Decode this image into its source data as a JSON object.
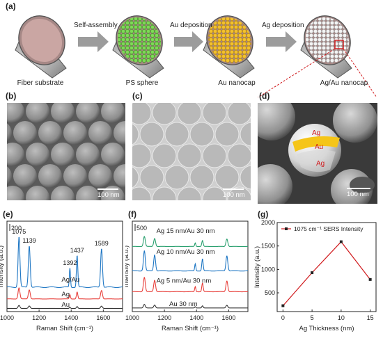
{
  "panels": {
    "a": "(a)",
    "b": "(b)",
    "c": "(c)",
    "d": "(d)",
    "e": "(e)",
    "f": "(f)",
    "g": "(g)"
  },
  "schematic": {
    "steps": [
      "Fiber substrate",
      "PS sphere",
      "Au nanocap",
      "Ag/Au nanocap"
    ],
    "arrows": [
      "Self-assembly",
      "Au deposition",
      "Ag deposition"
    ],
    "colors": {
      "fiber": "#caa6a3",
      "ps_sphere": "#7ed957",
      "au_nanocap": "#f2c12e",
      "ag_au_nanocap": "#eeeeee",
      "arrow": "#9c9c9c",
      "callout": "#d0181b"
    }
  },
  "sem": {
    "b_scale": "100 nm",
    "c_scale": "100 nm",
    "d_scale": "100 nm",
    "d_labels": {
      "ag_top": "Ag",
      "au": "Au",
      "ag_bottom": "Ag"
    }
  },
  "chart_data": [
    {
      "panel": "e",
      "type": "line",
      "xlabel": "Raman Shift (cm⁻¹)",
      "ylabel": "Intensity (a.u.)",
      "xlim": [
        1000,
        1720
      ],
      "xticks": [
        1000,
        1200,
        1400,
        1600
      ],
      "scale_label": "200",
      "series": [
        {
          "name": "Au",
          "color": "#333333",
          "offset": 0.035,
          "scale": 0.06
        },
        {
          "name": "Ag",
          "color": "#e8413c",
          "offset": 0.14,
          "scale": 0.22
        },
        {
          "name": "Ag/Au",
          "color": "#1f77c4",
          "offset": 0.27,
          "scale": 1.0
        }
      ],
      "peaks": [
        {
          "pos": 1075,
          "rel": 1.0,
          "width": 16,
          "label": "1075"
        },
        {
          "pos": 1139,
          "rel": 0.82,
          "width": 16,
          "label": "1139"
        },
        {
          "pos": 1392,
          "rel": 0.38,
          "width": 10,
          "label": "1392"
        },
        {
          "pos": 1437,
          "rel": 0.63,
          "width": 12,
          "label": "1437"
        },
        {
          "pos": 1589,
          "rel": 0.77,
          "width": 16,
          "label": "1589"
        }
      ]
    },
    {
      "panel": "f",
      "type": "line",
      "xlabel": "Raman Shift (cm⁻¹)",
      "ylabel": "Intensity (a.u.)",
      "xlim": [
        1000,
        1720
      ],
      "xticks": [
        1000,
        1200,
        1400,
        1600
      ],
      "scale_label": "500",
      "peaks": [
        {
          "pos": 1075,
          "rel": 1.0,
          "width": 16
        },
        {
          "pos": 1139,
          "rel": 0.8,
          "width": 16
        },
        {
          "pos": 1392,
          "rel": 0.35,
          "width": 10
        },
        {
          "pos": 1437,
          "rel": 0.6,
          "width": 12
        },
        {
          "pos": 1589,
          "rel": 0.75,
          "width": 16
        }
      ],
      "series": [
        {
          "name": "Au 30 nm",
          "color": "#333333",
          "offset": 0.04,
          "scale": 0.05
        },
        {
          "name": "Ag 5 nm/Au 30 nm",
          "color": "#e8413c",
          "offset": 0.22,
          "scale": 0.2
        },
        {
          "name": "Ag 10 nm/Au 30 nm",
          "color": "#1f77c4",
          "offset": 0.45,
          "scale": 0.28
        },
        {
          "name": "Ag 15 nm/Au 30 nm",
          "color": "#2aa06f",
          "offset": 0.72,
          "scale": 0.14
        }
      ]
    },
    {
      "panel": "g",
      "type": "line",
      "xlabel": "Ag Thickness (nm)",
      "ylabel": "Intensity (a.u.)",
      "xlim": [
        -1,
        16
      ],
      "ylim": [
        100,
        2000
      ],
      "xticks": [
        0,
        5,
        10,
        15
      ],
      "yticks": [
        500,
        1000,
        1500,
        2000
      ],
      "legend": "1075 cm⁻¹ SERS Intensity",
      "legend_placement": "top-left",
      "color": "#d0181b",
      "x": [
        0,
        5,
        10,
        15
      ],
      "y": [
        225,
        930,
        1590,
        785
      ]
    }
  ]
}
